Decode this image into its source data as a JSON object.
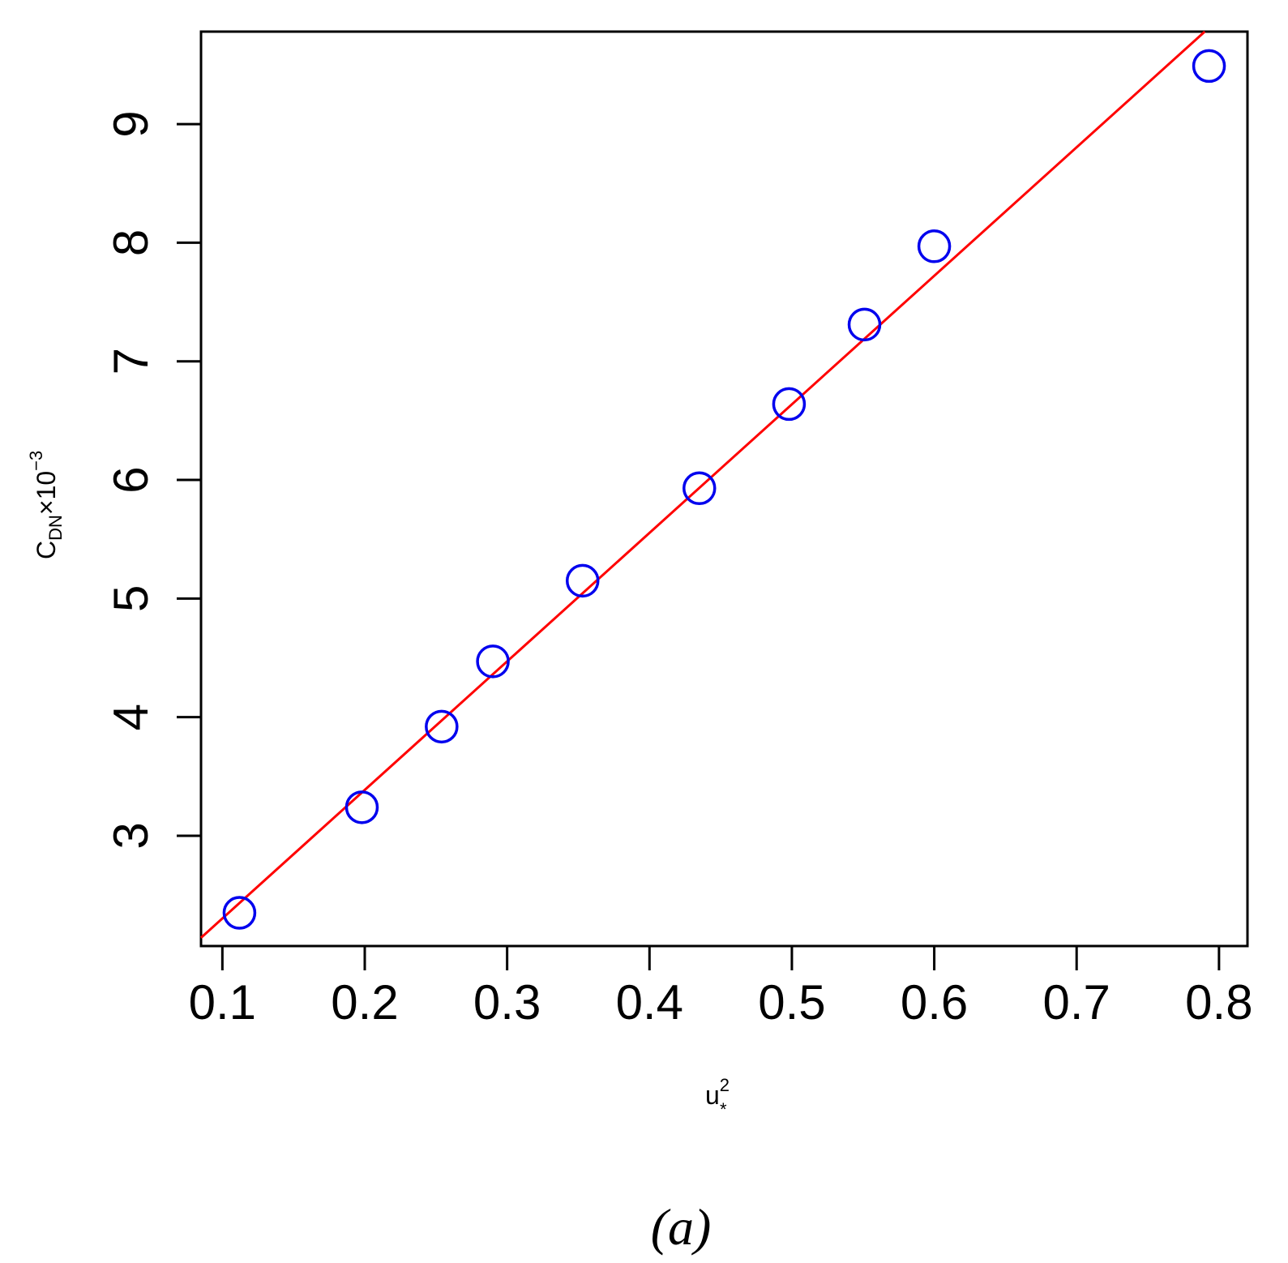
{
  "chart_data": {
    "type": "scatter",
    "xlabel": {
      "base": "u",
      "sup": "2",
      "sub": "*"
    },
    "ylabel": {
      "base": "C",
      "sub": "DN",
      "mid": "×10",
      "sup": "−3"
    },
    "xlim": [
      0.085,
      0.82
    ],
    "ylim": [
      2.07,
      9.78
    ],
    "xticks": [
      0.1,
      0.2,
      0.3,
      0.4,
      0.5,
      0.6,
      0.7,
      0.8
    ],
    "xtick_labels": [
      "0.1",
      "0.2",
      "0.3",
      "0.4",
      "0.5",
      "0.6",
      "0.7",
      "0.8"
    ],
    "yticks": [
      3,
      4,
      5,
      6,
      7,
      8,
      9
    ],
    "ytick_labels": [
      "3",
      "4",
      "5",
      "6",
      "7",
      "8",
      "9"
    ],
    "grid": false,
    "series": [
      {
        "marker": "open-circle",
        "color": "#0000ee",
        "x": [
          0.112,
          0.198,
          0.254,
          0.29,
          0.353,
          0.435,
          0.498,
          0.551,
          0.6,
          0.793
        ],
        "y": [
          2.35,
          3.24,
          3.92,
          4.47,
          5.15,
          5.93,
          6.64,
          7.31,
          7.97,
          9.49
        ]
      }
    ],
    "fit_line": {
      "color": "#ff0000",
      "x": [
        0.085,
        0.79
      ],
      "y": [
        2.14,
        9.78
      ]
    },
    "caption": "(a)"
  }
}
